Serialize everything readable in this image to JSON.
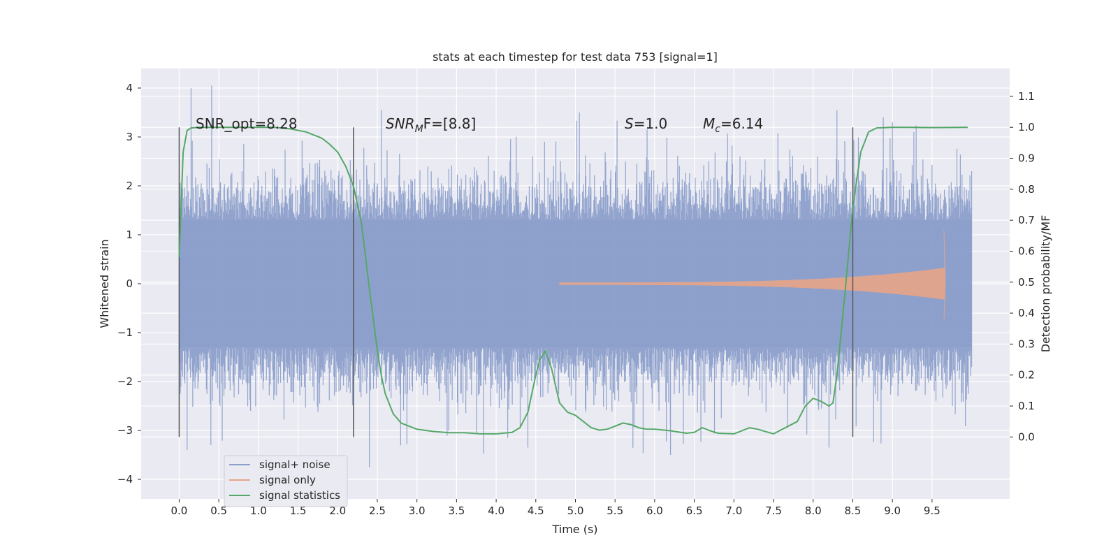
{
  "chart_data": {
    "type": "line",
    "title": "stats at each timestep for test data 753 [signal=1]",
    "xlabel": "Time (s)",
    "ylabel": "Whitened strain",
    "y2label": "Detection probability/MF",
    "xlim": [
      -0.48,
      10.48
    ],
    "ylim": [
      -4.4,
      4.4
    ],
    "y2lim": [
      -0.2,
      1.19
    ],
    "xticks": [
      "0.0",
      "0.5",
      "1.0",
      "1.5",
      "2.0",
      "2.5",
      "3.0",
      "3.5",
      "4.0",
      "4.5",
      "5.0",
      "5.5",
      "6.0",
      "6.5",
      "7.0",
      "7.5",
      "8.0",
      "8.5",
      "9.0",
      "9.5"
    ],
    "yticks": [
      "4",
      "3",
      "2",
      "1",
      "0",
      "−1",
      "−2",
      "−3",
      "−4"
    ],
    "y2ticks": [
      "1.1",
      "1.0",
      "0.9",
      "0.8",
      "0.7",
      "0.6",
      "0.5",
      "0.4",
      "0.3",
      "0.2",
      "0.1",
      "0.0"
    ],
    "grid": true,
    "legend_position": "lower-left",
    "annotations": {
      "snr_opt": "SNR_opt=8.28",
      "snr_mf_italic": "SNR",
      "snr_mf_sub": "M",
      "snr_mf_rest": "F=[8.8]",
      "s_italic": "S",
      "s_rest": "=1.0",
      "mc_italic": "M",
      "mc_sub": "c",
      "mc_rest": "=6.14"
    },
    "markers_x": [
      0.0,
      2.2,
      8.5
    ],
    "series": [
      {
        "name": "signal+ noise",
        "color": "#8da0cb",
        "kind": "noise",
        "x_range": [
          0.0,
          10.0
        ],
        "envelope": 1.3,
        "peak_high": 4.05,
        "peak_low": -3.75
      },
      {
        "name": "signal only",
        "color": "#e8a588",
        "kind": "chirp",
        "x_range": [
          4.8,
          9.66
        ],
        "y_end_high": 1.1,
        "y_end_low": -0.75
      },
      {
        "name": "signal statistics",
        "color": "#55a868",
        "axis": "right",
        "x": [
          0.0,
          0.05,
          0.1,
          0.15,
          0.25,
          0.4,
          0.6,
          0.8,
          1.0,
          1.2,
          1.4,
          1.6,
          1.8,
          1.9,
          2.0,
          2.1,
          2.2,
          2.3,
          2.4,
          2.5,
          2.55,
          2.6,
          2.7,
          2.8,
          3.0,
          3.2,
          3.4,
          3.6,
          3.8,
          4.0,
          4.2,
          4.3,
          4.4,
          4.5,
          4.55,
          4.62,
          4.7,
          4.8,
          4.9,
          5.0,
          5.1,
          5.2,
          5.3,
          5.4,
          5.5,
          5.6,
          5.7,
          5.8,
          5.9,
          6.0,
          6.2,
          6.4,
          6.5,
          6.6,
          6.7,
          6.8,
          7.0,
          7.2,
          7.3,
          7.5,
          7.8,
          7.9,
          8.0,
          8.1,
          8.2,
          8.25,
          8.3,
          8.4,
          8.5,
          8.6,
          8.7,
          8.8,
          9.0,
          9.2,
          9.5,
          9.95
        ],
        "y": [
          0.58,
          0.92,
          0.99,
          0.998,
          1.0,
          1.0,
          1.0,
          1.0,
          1.0,
          1.0,
          0.995,
          0.985,
          0.965,
          0.945,
          0.92,
          0.875,
          0.81,
          0.69,
          0.48,
          0.28,
          0.2,
          0.14,
          0.075,
          0.045,
          0.025,
          0.018,
          0.014,
          0.014,
          0.01,
          0.01,
          0.015,
          0.03,
          0.08,
          0.2,
          0.25,
          0.278,
          0.22,
          0.11,
          0.08,
          0.07,
          0.05,
          0.03,
          0.022,
          0.025,
          0.035,
          0.045,
          0.04,
          0.03,
          0.025,
          0.025,
          0.02,
          0.012,
          0.015,
          0.03,
          0.02,
          0.012,
          0.01,
          0.03,
          0.025,
          0.01,
          0.05,
          0.1,
          0.125,
          0.115,
          0.1,
          0.11,
          0.2,
          0.46,
          0.74,
          0.92,
          0.985,
          0.998,
          1.0,
          1.0,
          0.999,
          1.0
        ]
      }
    ]
  }
}
